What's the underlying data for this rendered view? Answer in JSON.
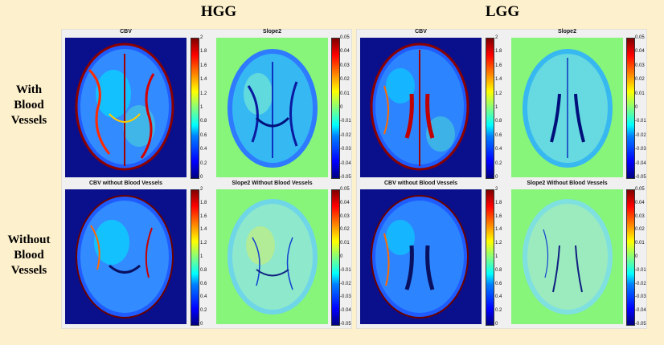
{
  "groups": {
    "hgg": "HGG",
    "lgg": "LGG"
  },
  "rows": {
    "with": [
      "With",
      "Blood",
      "Vessels"
    ],
    "without": [
      "Without",
      "Blood",
      "Vessels"
    ]
  },
  "panels": {
    "hgg_cbv": "CBV",
    "hgg_slope": "Slope2",
    "hgg_cbv_wo": "CBV without Blood Vessels",
    "hgg_slope_wo": "Slope2 Without Blood Vessels",
    "lgg_cbv": "CBV",
    "lgg_slope": "Slope2",
    "lgg_cbv_wo": "CBV without Blood Vessels",
    "lgg_slope_wo": "Slope2 Without Blood Vessels"
  },
  "colorbars": {
    "cbv_ticks": [
      "2",
      "1.8",
      "1.6",
      "1.4",
      "1.2",
      "1",
      "0.8",
      "0.6",
      "0.4",
      "0.2",
      "0"
    ],
    "slope_ticks": [
      "0.05",
      "0.04",
      "0.03",
      "0.02",
      "0.01",
      "0",
      "-0.01",
      "-0.02",
      "-0.03",
      "-0.04",
      "-0.05"
    ]
  },
  "colors": {
    "background": "#fdf0cc",
    "cbv_bg": "#0a0f8c",
    "slope_bg": "#86f57a"
  }
}
